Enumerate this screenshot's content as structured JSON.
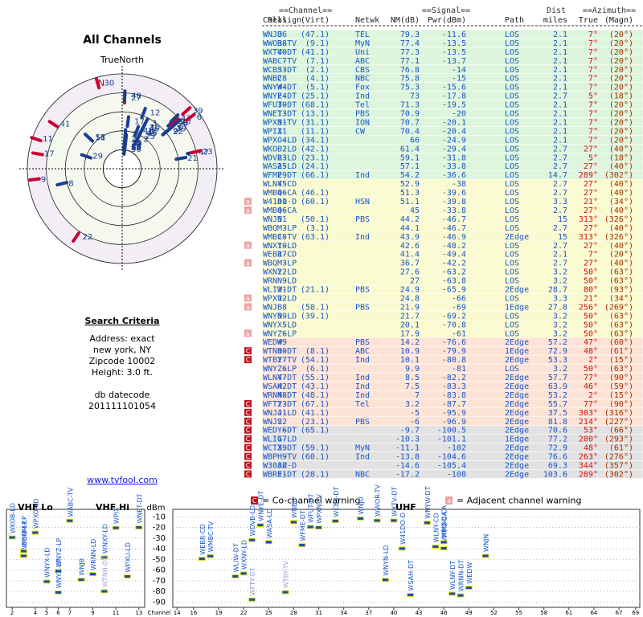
{
  "left": {
    "title": "All Channels",
    "north_label": "TrueNorth",
    "north_mark": "N",
    "criteria_title": "Search Criteria",
    "criteria": [
      "Address: exact",
      "new york, NY",
      "Zipcode 10002",
      "Height: 3.0 ft."
    ],
    "datecode_label": "db datecode",
    "datecode": "201111101054",
    "link": "www.tvfool.com"
  },
  "table": {
    "group_headers": [
      "==Channel==",
      "==Signal==",
      "Dist",
      "==Azimuth=="
    ],
    "headers": [
      "Callsign",
      "Real",
      "(Virt)",
      "Netwk",
      "NM(dB)",
      "Pwr(dBm)",
      "Path",
      "miles",
      "True",
      "(Magn)"
    ],
    "rows": [
      [
        "WNJU",
        36,
        "(47.1)",
        "TEL",
        79.3,
        -11.6,
        "LOS",
        2.1,
        "7°",
        "(20°)",
        null
      ],
      [
        "WWOR-TV",
        38,
        "(9.1)",
        "MyN",
        77.4,
        -13.5,
        "LOS",
        2.1,
        "7°",
        "(20°)",
        null
      ],
      [
        "WXTV-DT",
        40,
        "(41.1)",
        "Uni",
        77.3,
        -13.5,
        "LOS",
        2.1,
        "7°",
        "(20°)",
        null
      ],
      [
        "WABC-TV",
        7,
        "(7.1)",
        "ABC",
        77.1,
        -13.7,
        "LOS",
        2.1,
        "7°",
        "(20°)",
        null
      ],
      [
        "WCBS-DT",
        33,
        "(2.1)",
        "CBS",
        76.8,
        -14.0,
        "LOS",
        2.1,
        "7°",
        "(20°)",
        null
      ],
      [
        "WNBC",
        28,
        "(4.1)",
        "NBC",
        75.8,
        -15.0,
        "LOS",
        2.1,
        "7°",
        "(20°)",
        null
      ],
      [
        "WNYW-DT",
        44,
        "(5.1)",
        "Fox",
        75.3,
        -15.6,
        "LOS",
        2.1,
        "7°",
        "(20°)",
        null
      ],
      [
        "WNYE-DT",
        24,
        "(25.1)",
        "Ind",
        73.0,
        -17.8,
        "LOS",
        2.7,
        "5°",
        "(18°)",
        null
      ],
      [
        "WFUT-DT",
        30,
        "(68.1)",
        "Tel",
        71.3,
        -19.5,
        "LOS",
        2.1,
        "7°",
        "(20°)",
        null
      ],
      [
        "WNET-DT",
        13,
        "(13.1)",
        "PBS",
        70.9,
        -20.0,
        "LOS",
        2.1,
        "7°",
        "(20°)",
        null
      ],
      [
        "WPXN-TV",
        31,
        "(31.1)",
        "ION",
        70.7,
        -20.1,
        "LOS",
        2.1,
        "7°",
        "(20°)",
        null
      ],
      [
        "WPIX",
        11,
        "(11.1)",
        "CW",
        70.4,
        -20.4,
        "LOS",
        2.1,
        "7°",
        "(20°)",
        null
      ],
      [
        "WPXO-LD",
        4,
        "(34.1)",
        null,
        66.0,
        -24.9,
        "LOS",
        2.1,
        "7°",
        "(20°)",
        null
      ],
      [
        "WKOB-LD",
        2,
        "(42.1)",
        null,
        61.4,
        -29.4,
        "LOS",
        2.7,
        "27°",
        "(40°)",
        null
      ],
      [
        "WDVB-LD",
        23,
        "(23.1)",
        null,
        59.1,
        -31.8,
        "LOS",
        2.7,
        "5°",
        "(18°)",
        null
      ],
      [
        "WASA-LD",
        25,
        "(24.1)",
        null,
        57.1,
        -33.8,
        "LOS",
        2.7,
        "27°",
        "(40°)",
        null
      ],
      [
        "WFME-DT",
        29,
        "(66.1)",
        "Ind",
        54.2,
        -36.6,
        "LOS",
        14.7,
        "289°",
        "(302°)",
        null
      ],
      [
        "WLNY-CD",
        45,
        null,
        null,
        52.9,
        -38.0,
        "LOS",
        2.7,
        "27°",
        "(40°)",
        null
      ],
      [
        "WMBQ-CA",
        46,
        "(46.1)",
        null,
        51.3,
        -39.6,
        "LOS",
        2.7,
        "27°",
        "(40°)",
        null
      ],
      [
        "W41DO-D",
        41,
        "(60.1)",
        "HSN",
        51.1,
        -39.8,
        "LOS",
        3.3,
        "21°",
        "(34°)",
        "a"
      ],
      [
        "WMBQ-CA",
        46,
        null,
        null,
        45.0,
        -33.8,
        "LOS",
        2.7,
        "27°",
        "(40°)",
        "a"
      ],
      [
        "WNJN",
        51,
        "(50.1)",
        "PBS",
        44.2,
        -46.7,
        "LOS",
        15.0,
        "313°",
        "(326°)",
        null
      ],
      [
        "WBQM-LP",
        3,
        "(3.1)",
        null,
        44.1,
        -46.7,
        "LOS",
        2.7,
        "27°",
        "(40°)",
        null
      ],
      [
        "WMBC-TV",
        18,
        "(63.1)",
        "Ind",
        43.9,
        -46.9,
        "2Edge",
        15.0,
        "313°",
        "(326°)",
        null
      ],
      [
        "WNXY-LD",
        10,
        null,
        null,
        42.6,
        -48.2,
        "LOS",
        2.7,
        "27°",
        "(40°)",
        "a"
      ],
      [
        "WEBR-CD",
        17,
        null,
        null,
        41.4,
        -49.4,
        "LOS",
        2.1,
        "7°",
        "(20°)",
        null
      ],
      [
        "WBQM-LP",
        3,
        null,
        null,
        36.7,
        -42.2,
        "LOS",
        2.7,
        "27°",
        "(40°)",
        "a"
      ],
      [
        "WXNY-LD",
        22,
        null,
        null,
        27.6,
        -63.2,
        "LOS",
        3.2,
        "50°",
        "(63°)",
        null
      ],
      [
        "WRNN-LD",
        9,
        null,
        null,
        27.0,
        -63.8,
        "LOS",
        3.2,
        "50°",
        "(63°)",
        null
      ],
      [
        "WLIW-DT",
        21,
        "(21.1)",
        "PBS",
        24.9,
        -65.9,
        "2Edge",
        28.7,
        "80°",
        "(93°)",
        null
      ],
      [
        "WPXU-LD",
        12,
        null,
        null,
        24.8,
        -66.0,
        "LOS",
        3.3,
        "21°",
        "(34°)",
        "a"
      ],
      [
        "WNJB",
        8,
        "(58.1)",
        "PBS",
        21.9,
        -69.0,
        "1Edge",
        27.8,
        "256°",
        "(269°)",
        "a"
      ],
      [
        "WNYN-LD",
        39,
        "(39.1)",
        null,
        21.7,
        -69.2,
        "LOS",
        3.2,
        "50°",
        "(63°)",
        null
      ],
      [
        "WNYX-LD",
        5,
        null,
        null,
        20.1,
        -70.8,
        "LOS",
        3.2,
        "50°",
        "(63°)",
        null
      ],
      [
        "WNYZ-LP",
        6,
        null,
        null,
        17.9,
        -61.0,
        "LOS",
        3.2,
        "50°",
        "(63°)",
        "a"
      ],
      [
        "WEDW",
        49,
        null,
        "PBS",
        14.2,
        -76.6,
        "2Edge",
        57.2,
        "47°",
        "(60°)",
        null
      ],
      [
        "WTNH-DT",
        10,
        "(8.1)",
        "ABC",
        10.9,
        -79.9,
        "1Edge",
        72.9,
        "48°",
        "(61°)",
        "C"
      ],
      [
        "WTBY-TV",
        27,
        "(54.1)",
        "Ind",
        10.1,
        -80.8,
        "2Edge",
        53.3,
        "2°",
        "(15°)",
        "C"
      ],
      [
        "WNYZ-LP",
        6,
        "(6.1)",
        null,
        9.9,
        -81.0,
        "LOS",
        3.2,
        "50°",
        "(63°)",
        null
      ],
      [
        "WLNY-DT",
        47,
        "(55.1)",
        "Ind",
        8.5,
        -82.2,
        "2Edge",
        57.7,
        "77°",
        "(90°)",
        null
      ],
      [
        "WSAH-DT",
        42,
        "(43.1)",
        "Ind",
        7.5,
        -83.3,
        "2Edge",
        63.9,
        "46°",
        "(59°)",
        null
      ],
      [
        "WRNN-DT",
        48,
        "(48.1)",
        "Ind",
        7.0,
        -83.8,
        "2Edge",
        53.2,
        "2°",
        "(15°)",
        null
      ],
      [
        "WFTY-DT",
        23,
        "(67.1)",
        "Tel",
        3.2,
        -87.7,
        "2Edge",
        55.7,
        "77°",
        "(90°)",
        "C"
      ],
      [
        "WNJJ-LD",
        41,
        "(41.1)",
        null,
        -5.0,
        -95.9,
        "2Edge",
        37.5,
        "303°",
        "(316°)",
        "C"
      ],
      [
        "WNJS",
        22,
        "(23.1)",
        "PBS",
        -6.0,
        -96.9,
        "2Edge",
        81.8,
        "214°",
        "(227°)",
        "C"
      ],
      [
        "WEDY-DT",
        6,
        "(65.1)",
        null,
        -9.7,
        -100.5,
        "2Edge",
        70.6,
        "53°",
        "(66°)",
        "C"
      ],
      [
        "WLIG-LD",
        17,
        null,
        null,
        -10.3,
        -101.1,
        "1Edge",
        77.2,
        "280°",
        "(293°)",
        "C"
      ],
      [
        "WCTX-DT",
        39,
        "(59.1)",
        "MyN",
        -11.1,
        -102.0,
        "2Edge",
        72.9,
        "48°",
        "(61°)",
        "C"
      ],
      [
        "WBPH-TV",
        9,
        "(60.1)",
        "Ind",
        -13.8,
        -104.6,
        "2Edge",
        76.6,
        "263°",
        "(276°)",
        "C"
      ],
      [
        "W30AZ-D",
        30,
        null,
        null,
        -14.6,
        -105.4,
        "2Edge",
        69.3,
        "344°",
        "(357°)",
        "C"
      ],
      [
        "WBRE-DT",
        11,
        "(28.1)",
        "NBC",
        -17.2,
        -108.0,
        "2Edge",
        103.6,
        "289°",
        "(302°)",
        "C"
      ]
    ],
    "row_colors": [
      "#dcf5dc",
      "#dcf5dc",
      "#dcf5dc",
      "#dcf5dc",
      "#dcf5dc",
      "#dcf5dc",
      "#dcf5dc",
      "#dcf5dc",
      "#dcf5dc",
      "#dcf5dc",
      "#dcf5dc",
      "#dcf5dc",
      "#dcf5dc",
      "#dcf5dc",
      "#dcf5dc",
      "#dcf5dc",
      "#dcf5dc",
      "#fafad0",
      "#fafad0",
      "#fafad0",
      "#fafad0",
      "#fafad0",
      "#fafad0",
      "#fafad0",
      "#fafad0",
      "#fafad0",
      "#fafad0",
      "#fafad0",
      "#fafad0",
      "#fafad0",
      "#fafad0",
      "#fafad0",
      "#fafad0",
      "#fafad0",
      "#fafad0",
      "#fde3d6",
      "#fde3d6",
      "#fde3d6",
      "#fde3d6",
      "#fde3d6",
      "#fde3d6",
      "#fde3d6",
      "#fde3d6",
      "#fde3d6",
      "#fde3d6",
      "#e2e2e2",
      "#e2e2e2",
      "#e2e2e2",
      "#e2e2e2",
      "#e2e2e2",
      "#e2e2e2"
    ]
  },
  "legend": {
    "co_icon": "C",
    "co_text": "= Co-channel warning",
    "adj_icon": "a",
    "adj_text": "= Adjacent channel warning"
  },
  "spectrum": {
    "vhf_lo": "VHF Lo",
    "vhf_hi": "VHF Hi",
    "uhf": "UHF",
    "y_label": "dBm",
    "x_label": "Channel",
    "ylim": [
      -3,
      -95
    ],
    "yticks": [
      -10,
      -20,
      -30,
      -40,
      -50,
      -60,
      -70,
      -80,
      -90
    ],
    "vhf_xlim": [
      1.5,
      13.5
    ],
    "vhf_xticks": [
      2,
      4,
      5,
      6,
      7,
      9,
      11,
      13
    ],
    "uhf_xlim": [
      13.5,
      69.5
    ],
    "uhf_xticks": [
      14,
      16,
      19,
      22,
      25,
      28,
      31,
      34,
      37,
      40,
      43,
      46,
      49,
      52,
      55,
      58,
      61,
      64,
      67,
      69
    ]
  }
}
